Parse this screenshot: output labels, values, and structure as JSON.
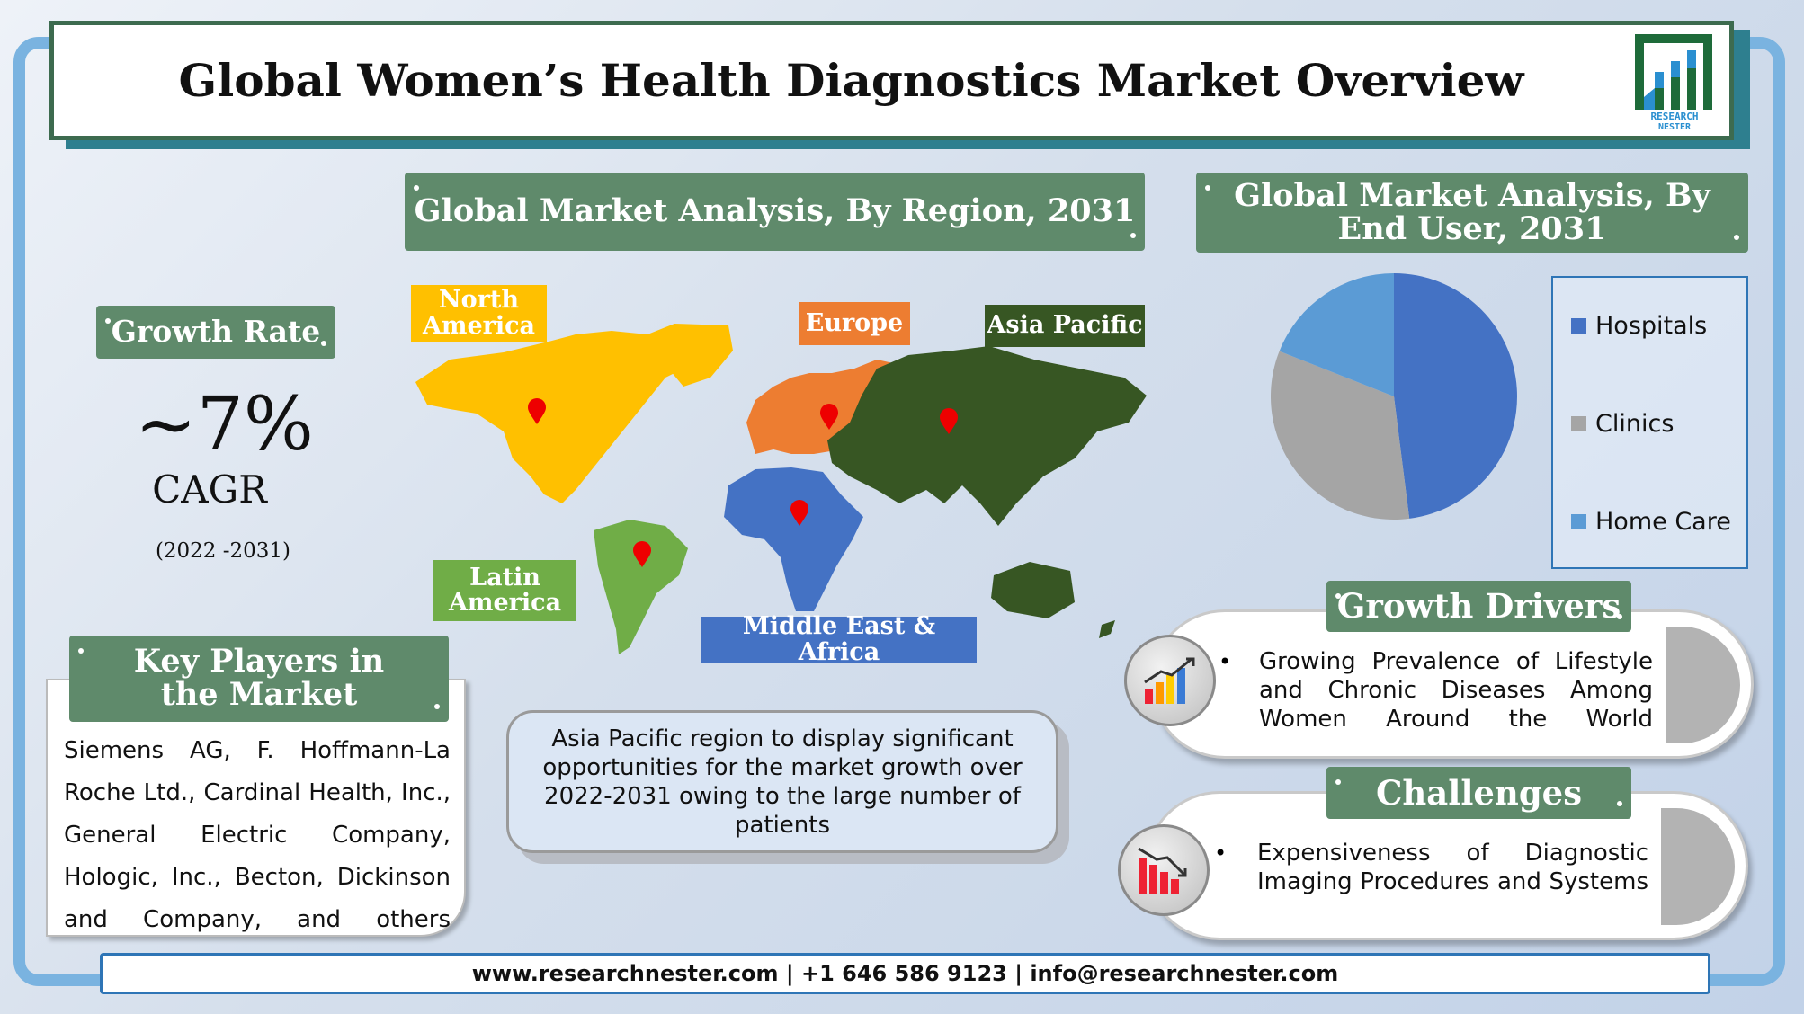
{
  "title": "Global Women’s Health Diagnostics Market Overview",
  "logo": {
    "line1": "RESEARCH",
    "line2": "NESTER"
  },
  "growth": {
    "label": "Growth Rate",
    "value": "~7%",
    "unit": "CAGR",
    "period": "(2022 -2031)"
  },
  "key_players": {
    "header": "Key Players in the Market",
    "text": "Siemens AG, F. Hoffmann-La Roche Ltd., Cardinal Health, Inc., General Electric Company, Hologic, Inc., Becton, Dickinson and Company, and others"
  },
  "region": {
    "header": "Global Market Analysis, By Region, 2031",
    "labels": {
      "north_america": "North America",
      "europe": "Europe",
      "asia_pacific": "Asia Pacific",
      "latin_america": "Latin America",
      "mea": "Middle East & Africa"
    },
    "colors": {
      "north_america": "#ffc000",
      "europe": "#ed7d31",
      "asia_pacific": "#375623",
      "latin_america": "#70ad47",
      "mea": "#4472c4"
    },
    "callout": "Asia Pacific region to display significant opportunities for the market growth over 2022-2031 owing to the large number of patients"
  },
  "chart_data": {
    "type": "pie",
    "title": "Global Market Analysis, By End User, 2031",
    "categories": [
      "Hospitals",
      "Clinics",
      "Home Care"
    ],
    "values": [
      48,
      33,
      19
    ],
    "colors": [
      "#4472c4",
      "#a5a5a5",
      "#5b9bd5"
    ],
    "legend": "right"
  },
  "drivers": {
    "header": "Growth Drivers",
    "text": "Growing Prevalence of Lifestyle and Chronic Diseases Among Women Around the World",
    "icon": "rising-bar-chart-icon"
  },
  "challenges": {
    "header": "Challenges",
    "text": "Expensiveness of Diagnostic Imaging Procedures and Systems",
    "icon": "falling-bar-chart-icon"
  },
  "footer": "www.researchnester.com | +1 646 586 9123 | info@researchnester.com"
}
